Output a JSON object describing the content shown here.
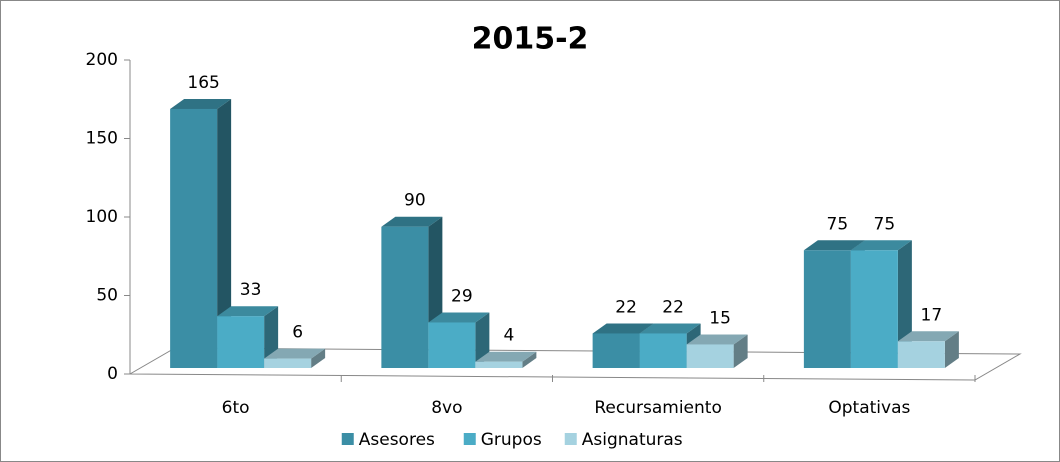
{
  "chart_data": {
    "type": "bar3d",
    "title": "2015-2",
    "categories": [
      "6to",
      "8vo",
      "Recursamiento",
      "Optativas"
    ],
    "series": [
      {
        "name": "Asesores",
        "color": "#3b8ea5",
        "values": [
          165,
          90,
          22,
          75
        ]
      },
      {
        "name": "Grupos",
        "color": "#4bacc6",
        "values": [
          33,
          29,
          22,
          75
        ]
      },
      {
        "name": "Asignaturas",
        "color": "#a5d2e0",
        "values": [
          6,
          4,
          15,
          17
        ]
      }
    ],
    "ylim": [
      0,
      200
    ],
    "yticks": [
      0,
      50,
      100,
      150,
      200
    ],
    "legend": "bottom"
  }
}
